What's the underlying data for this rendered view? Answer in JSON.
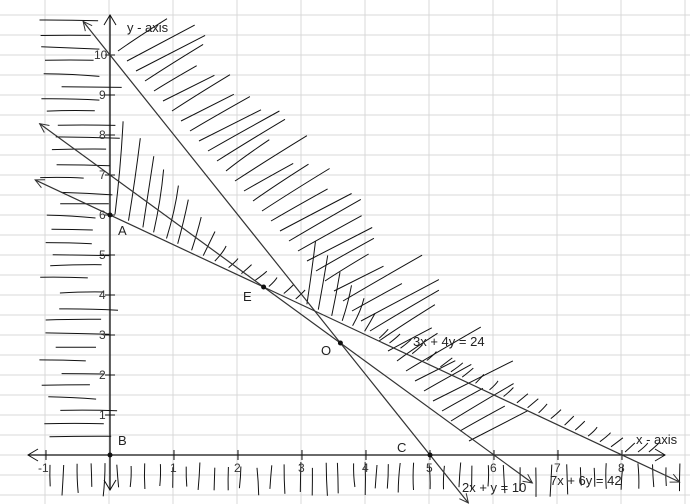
{
  "diagram": {
    "x_axis_label": "x - axis",
    "y_axis_label": "y - axis",
    "x_ticks": [
      "-1",
      "1",
      "2",
      "3",
      "4",
      "5",
      "6",
      "7",
      "8"
    ],
    "x_tick_values": [
      -1,
      1,
      2,
      3,
      4,
      5,
      6,
      7,
      8
    ],
    "y_ticks": [
      "1",
      "2",
      "3",
      "4",
      "5",
      "6",
      "7",
      "8",
      "9",
      "10"
    ],
    "y_tick_values": [
      1,
      2,
      3,
      4,
      5,
      6,
      7,
      8,
      9,
      10
    ],
    "lines": [
      {
        "label": "2x + y = 10",
        "a": 2,
        "b": 1,
        "c": 10
      },
      {
        "label": "7x + 6y = 42",
        "a": 7,
        "b": 6,
        "c": 42
      },
      {
        "label": "3x + 4y = 24",
        "a": 3,
        "b": 4,
        "c": 24
      }
    ],
    "points": [
      {
        "label": "A",
        "x": 0,
        "y": 6
      },
      {
        "label": "B",
        "x": 0,
        "y": 0
      },
      {
        "label": "C",
        "x": 5,
        "y": 0
      },
      {
        "label": "E",
        "x": 2.4,
        "y": 4.2
      },
      {
        "label": "O",
        "x": 3.6,
        "y": 2.8
      }
    ],
    "colors": {
      "ink": "#111111",
      "grid": "#d9d9d9"
    }
  }
}
